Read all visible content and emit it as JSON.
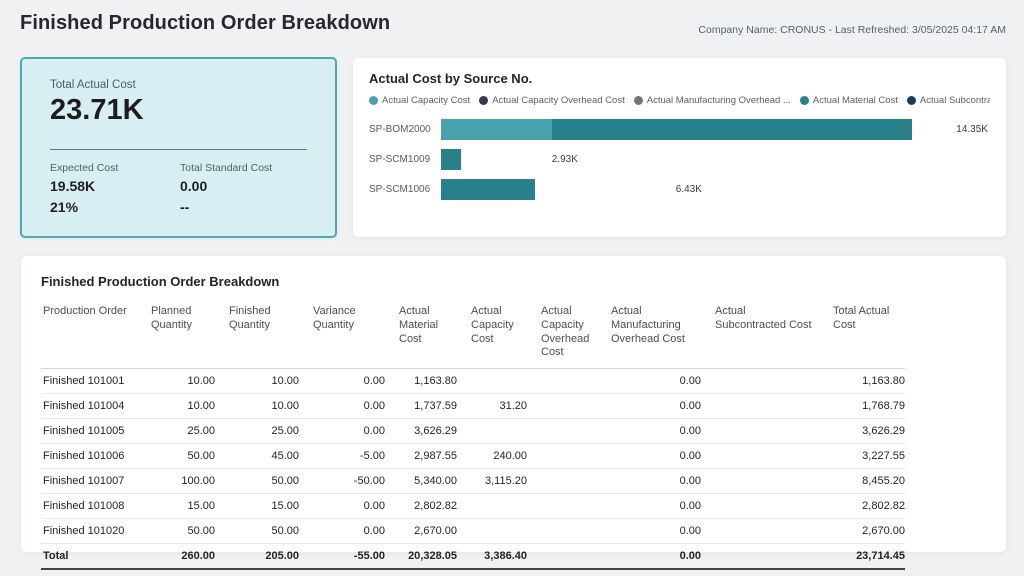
{
  "header": {
    "title": "Finished Production Order Breakdown",
    "refresh_info": "Company Name: CRONUS - Last Refreshed: 3/05/2025 04:17 AM"
  },
  "kpi_card": {
    "primary_label": "Total Actual Cost",
    "primary_value": "23.71K",
    "secondary": [
      {
        "label": "Expected Cost",
        "value": "19.58K",
        "sub_value": "21%"
      },
      {
        "label": "Total Standard Cost",
        "value": "0.00",
        "sub_value": "--"
      }
    ],
    "background_color": "#d7eff2",
    "border_color": "#4da9b4"
  },
  "chart_data": {
    "type": "bar",
    "orientation": "horizontal",
    "stacked": true,
    "title": "Actual Cost by Source No.",
    "legend_position": "top",
    "categories": [
      "SP-BOM2000",
      "SP-SCM1009",
      "SP-SCM1006"
    ],
    "series": [
      {
        "name": "Actual Capacity Cost",
        "color": "#4aa1ab",
        "values": [
          3.39,
          0,
          0
        ]
      },
      {
        "name": "Actual Capacity Overhead Cost",
        "color": "#333a4d",
        "values": [
          0,
          0,
          0
        ]
      },
      {
        "name": "Actual Manufacturing Overhead ...",
        "color": "#6f7682",
        "values": [
          0,
          0,
          0
        ]
      },
      {
        "name": "Actual Material Cost",
        "color": "#27808a",
        "values": [
          10.96,
          2.93,
          6.43
        ]
      },
      {
        "name": "Actual Subcontracted ...",
        "color": "#16404d",
        "values": [
          0,
          0,
          0
        ]
      }
    ],
    "bar_totals": [
      14.35,
      2.93,
      6.43
    ],
    "bar_total_labels": [
      "14.35K",
      "2.93K",
      "6.43K"
    ],
    "value_unit": "K",
    "axis_max": 15.5
  },
  "table": {
    "section_title": "Finished Production Order Breakdown",
    "columns": [
      {
        "label": "Production Order"
      },
      {
        "label": "Planned Quantity"
      },
      {
        "label": "Finished Quantity"
      },
      {
        "label": "Variance Quantity"
      },
      {
        "label": "Actual Material Cost"
      },
      {
        "label": "Actual Capacity Cost"
      },
      {
        "label": "Actual Capacity Overhead Cost"
      },
      {
        "label": "Actual Manufacturing Overhead Cost"
      },
      {
        "label": "Actual Subcontracted Cost"
      },
      {
        "label": "Total Actual Cost"
      }
    ],
    "rows": [
      [
        "Finished 101001",
        "10.00",
        "10.00",
        "0.00",
        "1,163.80",
        "",
        "",
        "0.00",
        "",
        "1,163.80"
      ],
      [
        "Finished 101004",
        "10.00",
        "10.00",
        "0.00",
        "1,737.59",
        "31.20",
        "",
        "0.00",
        "",
        "1,768.79"
      ],
      [
        "Finished 101005",
        "25.00",
        "25.00",
        "0.00",
        "3,626.29",
        "",
        "",
        "0.00",
        "",
        "3,626.29"
      ],
      [
        "Finished 101006",
        "50.00",
        "45.00",
        "-5.00",
        "2,987.55",
        "240.00",
        "",
        "0.00",
        "",
        "3,227.55"
      ],
      [
        "Finished 101007",
        "100.00",
        "50.00",
        "-50.00",
        "5,340.00",
        "3,115.20",
        "",
        "0.00",
        "",
        "8,455.20"
      ],
      [
        "Finished 101008",
        "15.00",
        "15.00",
        "0.00",
        "2,802.82",
        "",
        "",
        "0.00",
        "",
        "2,802.82"
      ],
      [
        "Finished 101020",
        "50.00",
        "50.00",
        "0.00",
        "2,670.00",
        "",
        "",
        "0.00",
        "",
        "2,670.00"
      ]
    ],
    "total_row": [
      "Total",
      "260.00",
      "205.00",
      "-55.00",
      "20,328.05",
      "3,386.40",
      "",
      "0.00",
      "",
      "23,714.45"
    ]
  }
}
